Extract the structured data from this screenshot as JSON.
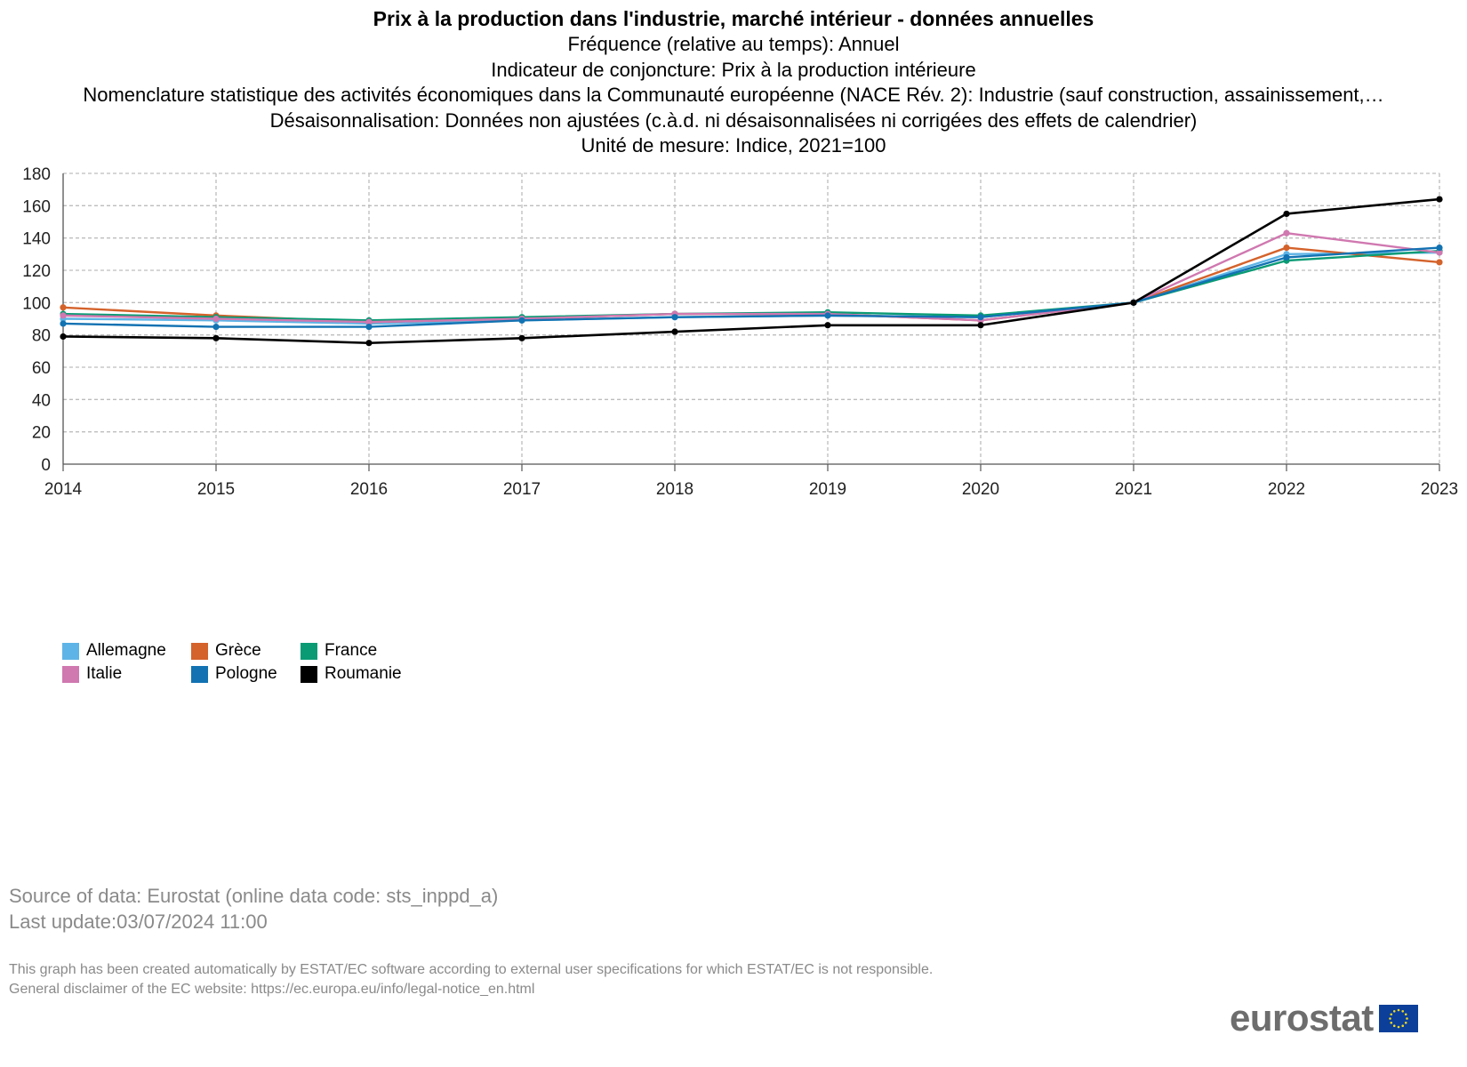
{
  "title": "Prix à la production dans l'industrie, marché intérieur - données annuelles",
  "subtitles": [
    "Fréquence (relative au temps): Annuel",
    "Indicateur de conjoncture: Prix à la production intérieure",
    "Nomenclature statistique des activités économiques dans la Communauté européenne (NACE Rév. 2): Industrie (sauf construction, assainissement,…",
    "Désaisonnalisation: Données non ajustées (c.à.d. ni désaisonnalisées ni corrigées des effets de calendrier)",
    "Unité de mesure: Indice, 2021=100"
  ],
  "chart_data": {
    "type": "line",
    "x": [
      "2014",
      "2015",
      "2016",
      "2017",
      "2018",
      "2019",
      "2020",
      "2021",
      "2022",
      "2023"
    ],
    "ylim": [
      0,
      180
    ],
    "yticks": [
      "0",
      "20",
      "40",
      "60",
      "80",
      "100",
      "120",
      "140",
      "160",
      "180"
    ],
    "grid": true,
    "legend_position": "bottom-left",
    "series": [
      {
        "name": "Allemagne",
        "color": "#5eb4e6",
        "values": [
          90,
          89,
          87,
          89,
          91,
          92,
          91,
          100,
          130,
          131
        ]
      },
      {
        "name": "Grèce",
        "color": "#d4622b",
        "values": [
          97,
          92,
          88,
          90,
          93,
          93,
          89,
          100,
          134,
          125
        ]
      },
      {
        "name": "France",
        "color": "#0a9b74",
        "values": [
          93,
          91,
          89,
          91,
          93,
          94,
          92,
          100,
          126,
          132
        ]
      },
      {
        "name": "Italie",
        "color": "#d078b0",
        "values": [
          92,
          90,
          88,
          90,
          93,
          93,
          89,
          100,
          143,
          131
        ]
      },
      {
        "name": "Pologne",
        "color": "#1272b2",
        "values": [
          87,
          85,
          85,
          89,
          91,
          92,
          91,
          100,
          128,
          134
        ]
      },
      {
        "name": "Roumanie",
        "color": "#000000",
        "values": [
          79,
          78,
          75,
          78,
          82,
          86,
          86,
          100,
          155,
          164
        ]
      }
    ]
  },
  "footer": {
    "source": "Source of data: Eurostat (online data code: sts_inppd_a)",
    "updated": "Last update:03/07/2024 11:00",
    "disclaimer1": "This graph has been created automatically by ESTAT/EC software according to external user specifications for which ESTAT/EC is not responsible.",
    "disclaimer2": "General disclaimer of the EC website: https://ec.europa.eu/info/legal-notice_en.html"
  },
  "logo": {
    "text": "eurostat",
    "flag_color": "#0b3f99",
    "star_color": "#f2d91e"
  }
}
